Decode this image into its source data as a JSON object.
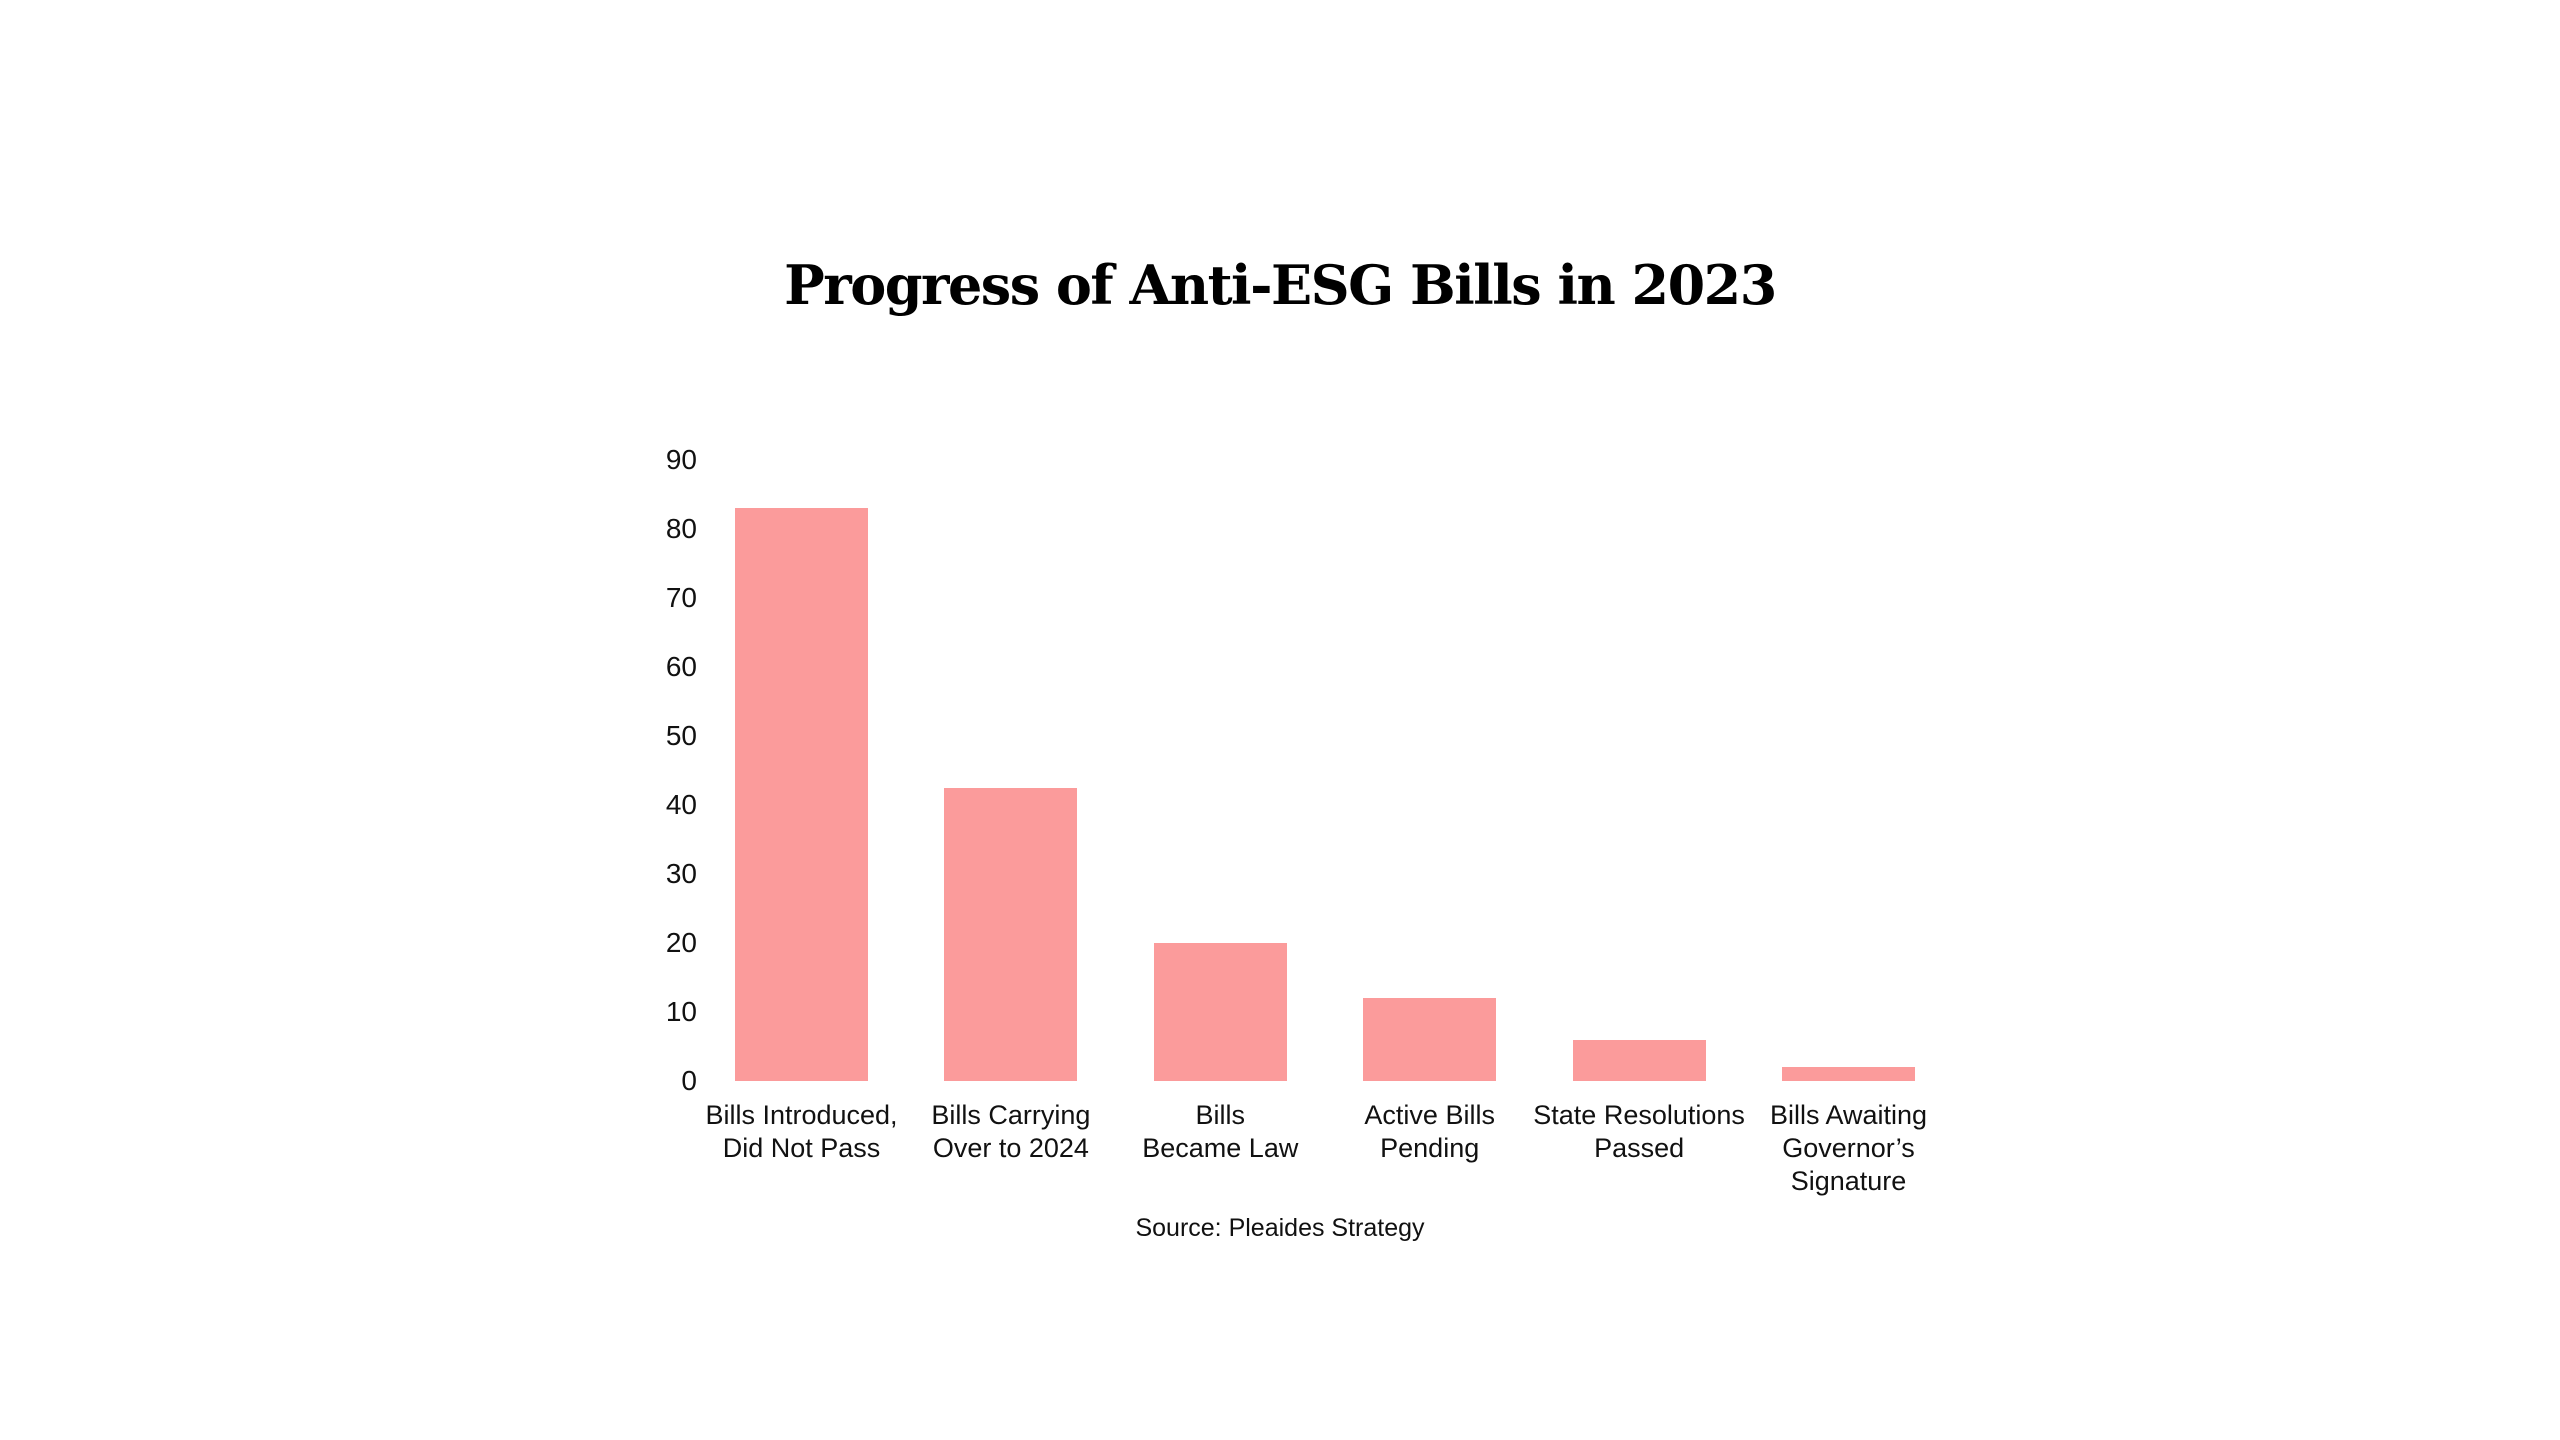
{
  "page": {
    "background_color": "#ffffff",
    "text_color": "#111111"
  },
  "header": {
    "title": "Progress of Anti-ESG Bills in 2023"
  },
  "footer": {
    "source": "Source: Pleaides Strategy"
  },
  "chart_data": {
    "type": "bar",
    "title": "Progress of Anti-ESG Bills in 2023",
    "categories": [
      "Bills Introduced, Did Not Pass",
      "Bills Carrying Over to 2024",
      "Bills Became Law",
      "Active Bills Pending",
      "State Resolutions Passed",
      "Bills Awaiting Governor’s Signature"
    ],
    "category_lines": [
      [
        "Bills Introduced,",
        "Did Not Pass"
      ],
      [
        "Bills Carrying",
        "Over to 2024"
      ],
      [
        "Bills",
        "Became Law"
      ],
      [
        "Active Bills",
        "Pending"
      ],
      [
        "State Resolutions",
        "Passed"
      ],
      [
        "Bills Awaiting",
        "Governor’s",
        "Signature"
      ]
    ],
    "values": [
      83,
      42.5,
      20,
      12,
      6,
      2
    ],
    "xlabel": "",
    "ylabel": "",
    "ylim": [
      0,
      90
    ],
    "yticks": [
      0,
      10,
      20,
      30,
      40,
      50,
      60,
      70,
      80,
      90
    ],
    "grid": false,
    "axis_lines": false,
    "legend": "none",
    "bar_color": "#FB9B9B",
    "source": "Source: Pleaides Strategy"
  }
}
